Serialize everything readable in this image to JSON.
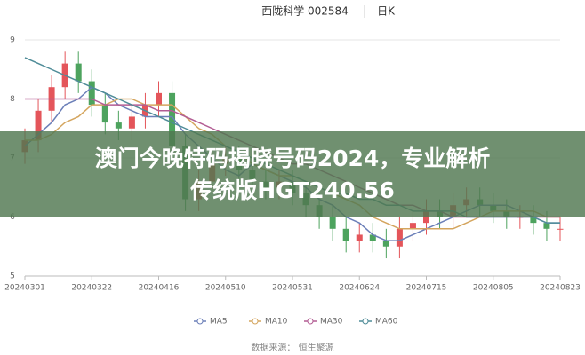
{
  "chart_data": {
    "type": "candlestick",
    "title": "西陇科学 002584",
    "period": "日K",
    "categories": [
      "20240301",
      null,
      null,
      null,
      null,
      "20240322",
      null,
      null,
      null,
      null,
      "20240416",
      null,
      null,
      null,
      null,
      "20240510",
      null,
      null,
      null,
      null,
      "20240531",
      null,
      null,
      null,
      null,
      "20240624",
      null,
      null,
      null,
      null,
      "20240715",
      null,
      null,
      null,
      null,
      "20240805",
      null,
      null,
      null,
      null,
      "20240823"
    ],
    "open": [
      7.1,
      7.3,
      7.8,
      8.2,
      8.6,
      8.3,
      7.9,
      7.6,
      7.5,
      7.7,
      7.9,
      8.1,
      7.2,
      6.3,
      6.6,
      6.9,
      7.0,
      6.8,
      6.6,
      6.5,
      6.6,
      6.4,
      6.2,
      6.0,
      5.8,
      5.6,
      5.7,
      5.6,
      5.5,
      5.8,
      5.9,
      6.1,
      6.0,
      6.2,
      6.3,
      6.2,
      6.1,
      6.0,
      6.0,
      5.9,
      5.8
    ],
    "high": [
      7.5,
      8.0,
      8.4,
      8.8,
      8.8,
      8.5,
      8.1,
      7.8,
      7.9,
      8.1,
      8.3,
      8.3,
      7.4,
      6.8,
      7.1,
      7.2,
      7.2,
      7.0,
      6.8,
      6.8,
      6.8,
      6.6,
      6.4,
      6.2,
      6.0,
      5.9,
      5.9,
      5.8,
      6.0,
      6.1,
      6.3,
      6.3,
      6.4,
      6.5,
      6.5,
      6.4,
      6.3,
      6.2,
      6.2,
      6.1,
      6.0
    ],
    "low": [
      6.9,
      7.1,
      7.6,
      8.0,
      8.1,
      7.7,
      7.4,
      7.3,
      7.3,
      7.5,
      7.7,
      7.0,
      6.1,
      6.1,
      6.4,
      6.7,
      6.6,
      6.4,
      6.3,
      6.3,
      6.2,
      6.0,
      5.8,
      5.6,
      5.4,
      5.4,
      5.4,
      5.3,
      5.3,
      5.6,
      5.7,
      5.8,
      5.8,
      6.0,
      6.0,
      5.9,
      5.8,
      5.8,
      5.7,
      5.6,
      5.6
    ],
    "close": [
      7.3,
      7.8,
      8.2,
      8.6,
      8.3,
      7.9,
      7.6,
      7.5,
      7.7,
      7.9,
      8.1,
      7.2,
      6.3,
      6.6,
      6.9,
      7.0,
      6.8,
      6.6,
      6.5,
      6.6,
      6.4,
      6.2,
      6.0,
      5.8,
      5.6,
      5.7,
      5.6,
      5.5,
      5.8,
      5.9,
      6.1,
      6.0,
      6.2,
      6.3,
      6.2,
      6.1,
      6.0,
      6.0,
      5.9,
      5.8,
      5.8
    ],
    "up_color": "#e4555a",
    "down_color": "#4da35e",
    "series": [
      {
        "name": "MA5",
        "color": "#6b7fb8",
        "values": [
          7.2,
          7.4,
          7.6,
          7.9,
          8.0,
          8.2,
          8.1,
          7.9,
          7.8,
          7.7,
          7.7,
          7.7,
          7.4,
          7.2,
          7.0,
          6.8,
          6.7,
          6.9,
          6.8,
          6.7,
          6.6,
          6.5,
          6.3,
          6.2,
          6.0,
          5.9,
          5.7,
          5.6,
          5.6,
          5.7,
          5.8,
          5.9,
          6.0,
          6.1,
          6.2,
          6.2,
          6.2,
          6.1,
          6.0,
          5.9,
          5.9
        ]
      },
      {
        "name": "MA10",
        "color": "#d4a55e",
        "values": [
          7.3,
          7.3,
          7.4,
          7.6,
          7.7,
          7.9,
          7.9,
          8.0,
          8.0,
          7.9,
          7.9,
          7.9,
          7.7,
          7.5,
          7.4,
          7.2,
          7.1,
          6.9,
          6.8,
          6.7,
          6.7,
          6.6,
          6.5,
          6.4,
          6.3,
          6.2,
          6.0,
          5.9,
          5.8,
          5.8,
          5.8,
          5.8,
          5.8,
          5.9,
          6.0,
          6.1,
          6.1,
          6.1,
          6.1,
          6.0,
          6.0
        ]
      },
      {
        "name": "MA30",
        "color": "#b25c93",
        "values": [
          8.0,
          8.0,
          8.0,
          8.0,
          8.0,
          8.0,
          7.9,
          7.9,
          7.9,
          7.9,
          7.8,
          7.8,
          7.7,
          7.6,
          7.5,
          7.4,
          7.3,
          7.2,
          7.1,
          7.0,
          6.9,
          6.9,
          6.8,
          6.7,
          6.6,
          6.5,
          6.4,
          6.3,
          6.2,
          6.2,
          6.1,
          6.1,
          6.0,
          6.0,
          6.0,
          6.0,
          6.0,
          6.0,
          6.0,
          6.0,
          6.0
        ]
      },
      {
        "name": "MA60",
        "color": "#4f8c98",
        "values": [
          8.7,
          8.6,
          8.5,
          8.4,
          8.3,
          8.2,
          8.1,
          8.0,
          7.9,
          7.8,
          7.7,
          7.6,
          7.5,
          7.4,
          7.3,
          7.2,
          7.1,
          7.0,
          6.9,
          6.8,
          6.7,
          6.6,
          6.5,
          6.4,
          6.4,
          6.3,
          6.3,
          6.2,
          6.2,
          6.1,
          6.1,
          6.1,
          6.1,
          6.0,
          6.0,
          6.0,
          6.0,
          6.0,
          6.0,
          5.9,
          5.9
        ]
      }
    ],
    "ylim": [
      5,
      9
    ],
    "yticks": [
      5,
      6,
      7,
      8,
      9
    ],
    "grid": true,
    "source": "数据来源： 恒生聚源",
    "overlay_text": "澳门今晚特码揭晓号码2024，专业解析传统版HGT240.56"
  }
}
